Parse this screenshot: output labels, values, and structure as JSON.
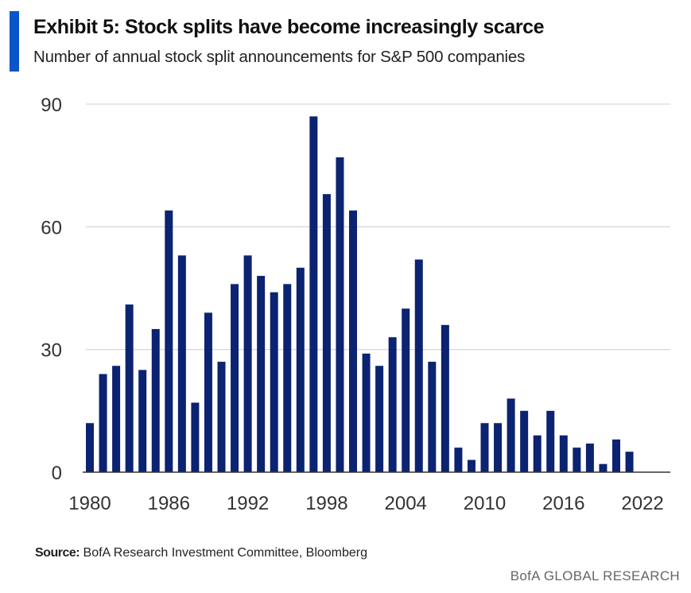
{
  "header": {
    "title": "Exhibit 5: Stock splits have become increasingly scarce",
    "subtitle": "Number of annual stock split announcements for S&P 500 companies"
  },
  "chart_data": {
    "type": "bar",
    "title": "Exhibit 5: Stock splits have become increasingly scarce",
    "subtitle": "Number of annual stock split announcements for S&P 500 companies",
    "xlabel": "",
    "ylabel": "",
    "x": [
      1980,
      1981,
      1982,
      1983,
      1984,
      1985,
      1986,
      1987,
      1988,
      1989,
      1990,
      1991,
      1992,
      1993,
      1994,
      1995,
      1996,
      1997,
      1998,
      1999,
      2000,
      2001,
      2002,
      2003,
      2004,
      2005,
      2006,
      2007,
      2008,
      2009,
      2010,
      2011,
      2012,
      2013,
      2014,
      2015,
      2016,
      2017,
      2018,
      2019,
      2020,
      2021,
      2022
    ],
    "values": [
      12,
      24,
      26,
      41,
      25,
      35,
      64,
      53,
      17,
      39,
      27,
      46,
      53,
      48,
      44,
      46,
      50,
      87,
      68,
      77,
      64,
      29,
      26,
      33,
      40,
      52,
      27,
      36,
      6,
      3,
      12,
      12,
      18,
      15,
      9,
      15,
      9,
      6,
      7,
      2,
      8,
      5,
      0
    ],
    "series_color": "#0b2370",
    "xticks": [
      "1980",
      "1986",
      "1992",
      "1998",
      "2004",
      "2010",
      "2016",
      "2022"
    ],
    "yticks": [
      "0",
      "30",
      "60",
      "90"
    ],
    "ylim": [
      0,
      90
    ],
    "grid": true,
    "legend": "none"
  },
  "footer": {
    "source_label": "Source:",
    "source_text": "BofA Research Investment Committee, Bloomberg",
    "brand": "BofA GLOBAL RESEARCH"
  },
  "colors": {
    "accent": "#0a55c8",
    "bars": "#0b2370",
    "grid": "#d9d9d9",
    "axis": "#333333"
  }
}
